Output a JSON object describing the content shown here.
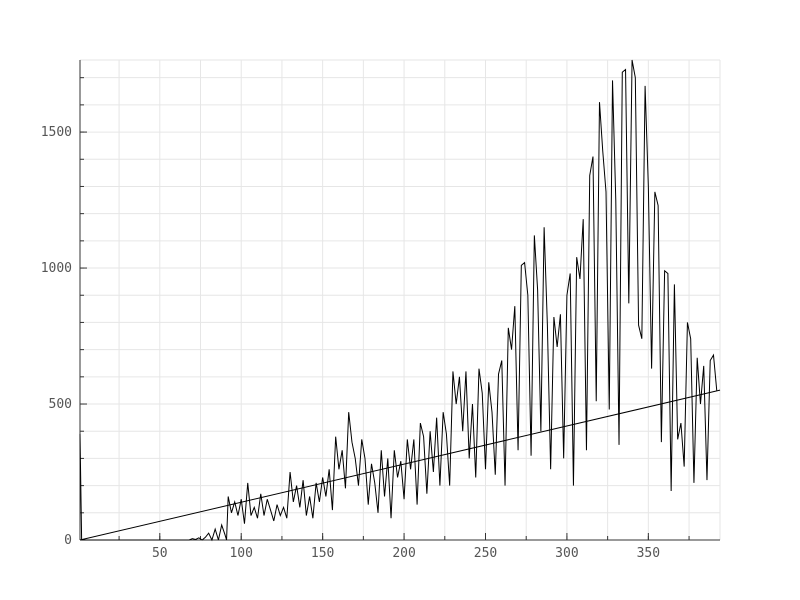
{
  "colors": {
    "background": "#ffffff",
    "grid": "#e6e6e6",
    "axis": "#333333",
    "tick_label": "#555555",
    "series": "#000000"
  },
  "chart_data": {
    "type": "line",
    "title": "",
    "xlabel": "",
    "ylabel": "",
    "xlim": [
      1,
      394
    ],
    "ylim": [
      0,
      1765
    ],
    "grid": true,
    "legend": "none",
    "x_ticks": [
      50,
      100,
      150,
      200,
      250,
      300,
      350
    ],
    "y_ticks": [
      0,
      500,
      1000,
      1500
    ],
    "x_minor_step": 25,
    "y_minor_step": 100,
    "series": [
      {
        "style": "jagged",
        "points": [
          [
            1,
            390
          ],
          [
            2,
            0
          ],
          [
            68,
            0
          ],
          [
            70,
            5
          ],
          [
            72,
            2
          ],
          [
            74,
            8
          ],
          [
            76,
            0
          ],
          [
            78,
            10
          ],
          [
            80,
            25
          ],
          [
            82,
            0
          ],
          [
            84,
            40
          ],
          [
            86,
            0
          ],
          [
            88,
            55
          ],
          [
            90,
            20
          ],
          [
            91,
            0
          ],
          [
            92,
            160
          ],
          [
            94,
            100
          ],
          [
            96,
            140
          ],
          [
            98,
            90
          ],
          [
            100,
            150
          ],
          [
            102,
            60
          ],
          [
            104,
            210
          ],
          [
            106,
            90
          ],
          [
            108,
            120
          ],
          [
            110,
            80
          ],
          [
            112,
            170
          ],
          [
            114,
            90
          ],
          [
            116,
            150
          ],
          [
            118,
            110
          ],
          [
            120,
            70
          ],
          [
            122,
            130
          ],
          [
            124,
            90
          ],
          [
            126,
            120
          ],
          [
            128,
            80
          ],
          [
            130,
            250
          ],
          [
            132,
            140
          ],
          [
            134,
            200
          ],
          [
            136,
            120
          ],
          [
            138,
            220
          ],
          [
            140,
            90
          ],
          [
            142,
            160
          ],
          [
            144,
            80
          ],
          [
            146,
            210
          ],
          [
            148,
            140
          ],
          [
            150,
            230
          ],
          [
            152,
            160
          ],
          [
            154,
            260
          ],
          [
            156,
            110
          ],
          [
            158,
            380
          ],
          [
            160,
            260
          ],
          [
            162,
            330
          ],
          [
            164,
            190
          ],
          [
            166,
            470
          ],
          [
            168,
            360
          ],
          [
            170,
            300
          ],
          [
            172,
            200
          ],
          [
            174,
            370
          ],
          [
            176,
            300
          ],
          [
            178,
            130
          ],
          [
            180,
            280
          ],
          [
            182,
            210
          ],
          [
            184,
            100
          ],
          [
            186,
            330
          ],
          [
            188,
            160
          ],
          [
            190,
            300
          ],
          [
            192,
            80
          ],
          [
            194,
            330
          ],
          [
            196,
            230
          ],
          [
            198,
            290
          ],
          [
            200,
            150
          ],
          [
            202,
            370
          ],
          [
            204,
            260
          ],
          [
            206,
            370
          ],
          [
            208,
            130
          ],
          [
            210,
            430
          ],
          [
            212,
            380
          ],
          [
            214,
            170
          ],
          [
            216,
            400
          ],
          [
            218,
            250
          ],
          [
            220,
            450
          ],
          [
            222,
            200
          ],
          [
            224,
            470
          ],
          [
            226,
            390
          ],
          [
            228,
            200
          ],
          [
            230,
            620
          ],
          [
            232,
            500
          ],
          [
            234,
            600
          ],
          [
            236,
            400
          ],
          [
            238,
            620
          ],
          [
            240,
            300
          ],
          [
            242,
            500
          ],
          [
            244,
            230
          ],
          [
            246,
            630
          ],
          [
            248,
            540
          ],
          [
            250,
            260
          ],
          [
            252,
            580
          ],
          [
            254,
            470
          ],
          [
            256,
            240
          ],
          [
            258,
            610
          ],
          [
            260,
            660
          ],
          [
            262,
            200
          ],
          [
            264,
            780
          ],
          [
            266,
            700
          ],
          [
            268,
            860
          ],
          [
            270,
            330
          ],
          [
            272,
            1010
          ],
          [
            274,
            1020
          ],
          [
            276,
            900
          ],
          [
            278,
            310
          ],
          [
            280,
            1120
          ],
          [
            282,
            920
          ],
          [
            284,
            400
          ],
          [
            286,
            1150
          ],
          [
            288,
            790
          ],
          [
            290,
            260
          ],
          [
            292,
            820
          ],
          [
            294,
            710
          ],
          [
            296,
            830
          ],
          [
            298,
            300
          ],
          [
            300,
            900
          ],
          [
            302,
            980
          ],
          [
            304,
            200
          ],
          [
            306,
            1040
          ],
          [
            308,
            960
          ],
          [
            310,
            1180
          ],
          [
            312,
            330
          ],
          [
            314,
            1340
          ],
          [
            316,
            1410
          ],
          [
            318,
            510
          ],
          [
            320,
            1610
          ],
          [
            322,
            1430
          ],
          [
            324,
            1280
          ],
          [
            326,
            480
          ],
          [
            328,
            1690
          ],
          [
            330,
            1250
          ],
          [
            332,
            350
          ],
          [
            334,
            1720
          ],
          [
            336,
            1730
          ],
          [
            338,
            870
          ],
          [
            340,
            1765
          ],
          [
            342,
            1700
          ],
          [
            344,
            790
          ],
          [
            346,
            740
          ],
          [
            348,
            1670
          ],
          [
            350,
            1300
          ],
          [
            352,
            630
          ],
          [
            354,
            1280
          ],
          [
            356,
            1230
          ],
          [
            358,
            360
          ],
          [
            360,
            990
          ],
          [
            362,
            980
          ],
          [
            364,
            180
          ],
          [
            366,
            940
          ],
          [
            368,
            370
          ],
          [
            370,
            430
          ],
          [
            372,
            270
          ],
          [
            374,
            800
          ],
          [
            376,
            740
          ],
          [
            378,
            210
          ],
          [
            380,
            670
          ],
          [
            382,
            500
          ],
          [
            384,
            640
          ],
          [
            386,
            220
          ],
          [
            388,
            660
          ],
          [
            390,
            680
          ],
          [
            392,
            550
          ]
        ]
      },
      {
        "style": "trend",
        "points": [
          [
            1,
            0
          ],
          [
            394,
            551
          ]
        ]
      }
    ]
  }
}
